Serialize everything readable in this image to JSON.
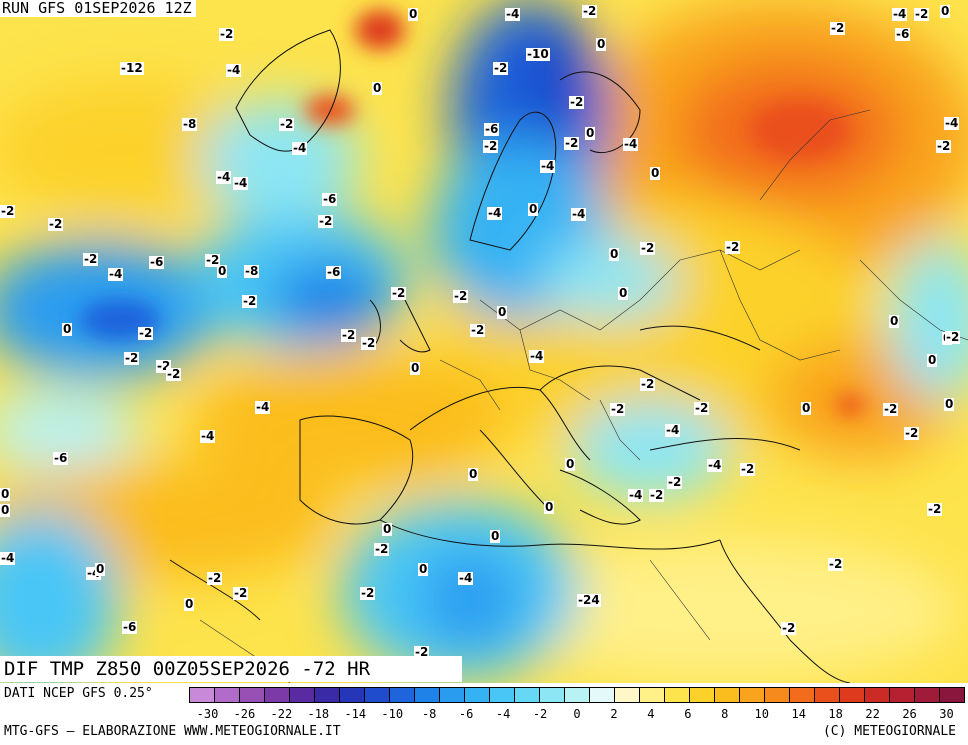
{
  "header": {
    "run_title": "RUN GFS 01SEP2026 12Z"
  },
  "product": {
    "title": "DIF TMP Z850 00Z05SEP2026 -72 HR"
  },
  "footer": {
    "source": "DATI NCEP GFS 0.25°",
    "credit_left": "MTG-GFS — ELABORAZIONE WWW.METEOGIORNALE.IT",
    "credit_right": "(C) METEOGIORNALE"
  },
  "legend": {
    "colors": [
      "#c88ad8",
      "#b06cc8",
      "#9850b4",
      "#7c3aa8",
      "#5a2aa0",
      "#3a2aa6",
      "#2636b8",
      "#1e4ccc",
      "#1e64dc",
      "#1e82e8",
      "#2a9cf0",
      "#34b2f4",
      "#4ac6f6",
      "#66d8f6",
      "#8ce6f4",
      "#b8f2f2",
      "#e4fafa",
      "#fff7c8",
      "#fff088",
      "#fde34c",
      "#fcd22a",
      "#fbbd1e",
      "#f9a41c",
      "#f68a1c",
      "#f26c1c",
      "#ea501c",
      "#de3a1e",
      "#cc2a24",
      "#b62030",
      "#a01a3a",
      "#8a163e"
    ],
    "tick_labels": [
      "-30",
      "-26",
      "-22",
      "-18",
      "-14",
      "-10",
      "-8",
      "-6",
      "-4",
      "-2",
      "0",
      "2",
      "4",
      "6",
      "8",
      "10",
      "14",
      "18",
      "22",
      "26",
      "30"
    ]
  },
  "map": {
    "labels": [
      "0",
      "-4",
      "-2",
      "-4",
      "-2",
      "0",
      "-2",
      "0",
      "-2",
      "-6",
      "-10",
      "-2",
      "-12",
      "-4",
      "0",
      "-2",
      "-6",
      "-4",
      "-8",
      "-2",
      "-2",
      "-2",
      "0",
      "-4",
      "-4",
      "-4",
      "0",
      "-2",
      "-4",
      "-4",
      "-6",
      "-2",
      "-2",
      "-4",
      "0",
      "-4",
      "-2",
      "0",
      "-2",
      "-2",
      "-2",
      "-4",
      "-6",
      "-2",
      "0",
      "-8",
      "-6",
      "-2",
      "-2",
      "0",
      "-2",
      "0",
      "-2",
      "0",
      "-2",
      "-2",
      "-2",
      "0",
      "0",
      "-2",
      "-2",
      "0",
      "-2",
      "0",
      "-4",
      "-2",
      "-4",
      "-2",
      "-2",
      "0",
      "-2",
      "0",
      "-4",
      "-4",
      "-2",
      "-6",
      "0",
      "-4",
      "-2",
      "0",
      "-2",
      "0",
      "-4",
      "-2",
      "0",
      "-2",
      "0",
      "0",
      "-2",
      "0",
      "-4",
      "-4",
      "0",
      "0",
      "-4",
      "-2",
      "-2",
      "-2",
      "-24",
      "-2",
      "0",
      "-2",
      "-6",
      "-2",
      "-2",
      "-2"
    ]
  }
}
